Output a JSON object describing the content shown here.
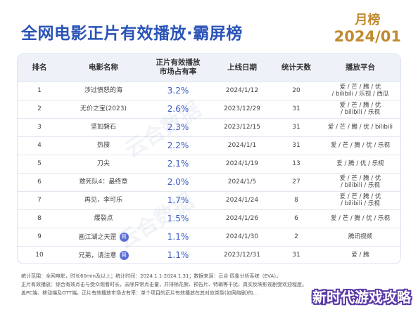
{
  "title": "全网电影正片有效播放·霸屏榜",
  "badge": {
    "label": "月榜",
    "period": "2024/01"
  },
  "watermark": "云合数据",
  "chart_data": {
    "type": "table",
    "columns": [
      "排名",
      "电影名称",
      "正片有效播放\n市场占有率",
      "上线日期",
      "统计天数",
      "播放平台"
    ],
    "rows": [
      {
        "rank": "1",
        "name": "涉过愤怒的海",
        "share": "3.2%",
        "date": "2024/1/12",
        "days": "20",
        "platform": "爱 / 芒 / 腾 / 优\n/ bilibili / 乐视 / 西瓜",
        "network": ""
      },
      {
        "rank": "2",
        "name": "无价之宝(2023)",
        "share": "2.6%",
        "date": "2023/12/29",
        "days": "31",
        "platform": "爱 / 芒 / 腾 / 优\n/ bilibili / 乐视",
        "network": ""
      },
      {
        "rank": "3",
        "name": "坚如磐石",
        "share": "2.3%",
        "date": "2023/12/15",
        "days": "31",
        "platform": "爱 / 芒 / 腾 / 优 / bilibili",
        "network": ""
      },
      {
        "rank": "4",
        "name": "热搜",
        "share": "2.2%",
        "date": "2024/1/1",
        "days": "31",
        "platform": "爱 / 芒 / 腾 / 优 / 乐视",
        "network": ""
      },
      {
        "rank": "5",
        "name": "刀尖",
        "share": "2.1%",
        "date": "2024/1/19",
        "days": "13",
        "platform": "爱 / 腾 / 优 / 乐视",
        "network": ""
      },
      {
        "rank": "6",
        "name": "敢死队4：最终章",
        "share": "2.0%",
        "date": "2024/1/5",
        "days": "27",
        "platform": "爱 / 芒 / 腾 / 优\n/ bilibili / 乐视",
        "network": ""
      },
      {
        "rank": "7",
        "name": "再见，李可乐",
        "share": "1.7%",
        "date": "2024/1/24",
        "days": "8",
        "platform": "爱 / 芒 / 腾 / 优\n/ bilibili / 乐视",
        "network": ""
      },
      {
        "rank": "8",
        "name": "爆裂点",
        "share": "1.5%",
        "date": "2024/1/26",
        "days": "6",
        "platform": "爱 / 芒 / 腾 / 优 / 乐视",
        "network": ""
      },
      {
        "rank": "9",
        "name": "画江湖之天罡",
        "share": "1.1%",
        "date": "2024/1/30",
        "days": "2",
        "platform": "腾讯视频",
        "network": "网"
      },
      {
        "rank": "10",
        "name": "兄弟，请注意",
        "share": "1.1%",
        "date": "2023/12/31",
        "days": "31",
        "platform": "爱 / 腾",
        "network": "网"
      }
    ]
  },
  "footer": {
    "line1": "统计范围：全网电影，时长60min及以上；统计时间：2024.1.1-2024.1.31；数据来源：云合·四象分析系统（EVA）。",
    "line2": "正片有效播放：综合有效点击与受众观看时长，去除异常点击量，并排除花絮、预告片、特辑等干扰，真实反映影视剧受欢迎程度。",
    "line3": "盖PC端、移动端及OTT端。正片有效播放市场占有率：单个项目的正片有效播放在其对应类型(如网络剧)的…"
  },
  "corner_watermark": "新时代游戏攻略"
}
